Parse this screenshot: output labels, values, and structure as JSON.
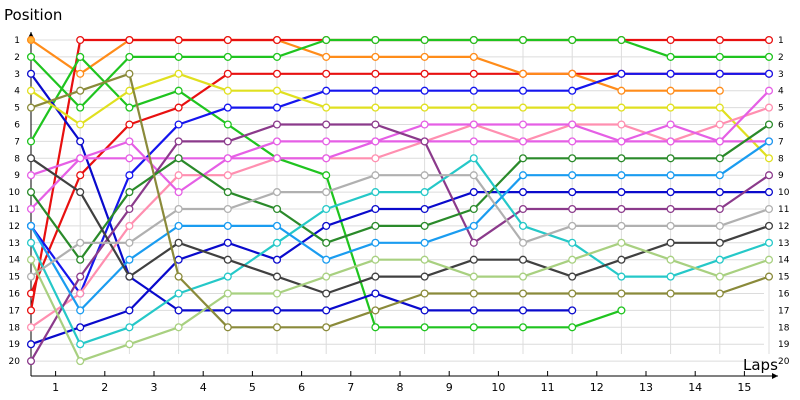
{
  "chart_data": {
    "type": "line",
    "title": "",
    "ylabel": "Position",
    "xlabel": "Laps",
    "y_ticks": [
      "1",
      "2",
      "3",
      "4",
      "5",
      "6",
      "7",
      "8",
      "9",
      "10",
      "11",
      "12",
      "13",
      "14",
      "15",
      "16",
      "17",
      "18",
      "19",
      "20"
    ],
    "x_ticks": [
      "1",
      "2",
      "3",
      "4",
      "5",
      "6",
      "7",
      "8",
      "9",
      "10",
      "11",
      "12",
      "13",
      "14",
      "15"
    ],
    "ylim": [
      1,
      20
    ],
    "y_inverted": true,
    "xlim": [
      0,
      15.5
    ],
    "grid": true,
    "legend": "none",
    "x": [
      0,
      1,
      2,
      3,
      4,
      5,
      6,
      7,
      8,
      9,
      10,
      11,
      12,
      13,
      14,
      15
    ],
    "series": [
      {
        "color": "#e81010",
        "values": [
          16,
          9,
          6,
          5,
          3,
          3,
          3,
          3,
          3,
          3,
          3,
          3,
          3,
          3,
          3,
          3
        ]
      },
      {
        "color": "#ff8c1a",
        "values": [
          1,
          3,
          1,
          1,
          1,
          1,
          2,
          2,
          2,
          2,
          3,
          3,
          4,
          4,
          4,
          null
        ]
      },
      {
        "color": "#e81010",
        "values": [
          17,
          1,
          1,
          1,
          1,
          1,
          1,
          1,
          1,
          1,
          1,
          1,
          1,
          1,
          1,
          1
        ]
      },
      {
        "color": "#1fc41f",
        "values": [
          7,
          2,
          5,
          4,
          6,
          8,
          9,
          18,
          18,
          18,
          18,
          18,
          17,
          null,
          null,
          null
        ]
      },
      {
        "color": "#1fc41f",
        "values": [
          2,
          5,
          2,
          2,
          2,
          2,
          1,
          1,
          1,
          1,
          1,
          1,
          1,
          2,
          2,
          2
        ]
      },
      {
        "color": "#0a0acc",
        "values": [
          3,
          7,
          15,
          17,
          17,
          17,
          17,
          16,
          17,
          17,
          17,
          17,
          null,
          null,
          null,
          null
        ]
      },
      {
        "color": "#0a0acc",
        "values": [
          19,
          18,
          17,
          14,
          13,
          14,
          12,
          11,
          11,
          10,
          10,
          10,
          10,
          10,
          10,
          10
        ]
      },
      {
        "color": "#1515ee",
        "values": [
          12,
          16,
          9,
          6,
          5,
          5,
          4,
          4,
          4,
          4,
          4,
          4,
          3,
          3,
          3,
          3
        ]
      },
      {
        "color": "#e0e020",
        "values": [
          4,
          6,
          4,
          3,
          4,
          4,
          5,
          5,
          5,
          5,
          5,
          5,
          5,
          5,
          5,
          8
        ]
      },
      {
        "color": "#ff8fb0",
        "values": [
          18,
          16,
          12,
          9,
          9,
          8,
          8,
          8,
          7,
          6,
          7,
          6,
          6,
          7,
          6,
          5
        ]
      },
      {
        "color": "#e55fe5",
        "values": [
          9,
          8,
          7,
          10,
          8,
          7,
          7,
          7,
          6,
          6,
          6,
          6,
          7,
          6,
          7,
          4
        ]
      },
      {
        "color": "#e55fe5",
        "values": [
          11,
          8,
          8,
          8,
          8,
          8,
          8,
          7,
          7,
          7,
          7,
          7,
          7,
          7,
          7,
          7
        ]
      },
      {
        "color": "#8b3a8b",
        "values": [
          20,
          15,
          11,
          7,
          7,
          6,
          6,
          6,
          7,
          13,
          11,
          11,
          11,
          11,
          11,
          9
        ]
      },
      {
        "color": "#2a8a2a",
        "values": [
          10,
          14,
          10,
          8,
          10,
          11,
          13,
          12,
          12,
          11,
          8,
          8,
          8,
          8,
          8,
          6
        ]
      },
      {
        "color": "#25c8c8",
        "values": [
          13,
          19,
          18,
          16,
          15,
          13,
          11,
          10,
          10,
          8,
          12,
          13,
          15,
          15,
          14,
          13
        ]
      },
      {
        "color": "#1a9cf0",
        "values": [
          12,
          17,
          14,
          12,
          12,
          12,
          14,
          13,
          13,
          12,
          9,
          9,
          9,
          9,
          9,
          7
        ]
      },
      {
        "color": "#404040",
        "values": [
          8,
          10,
          15,
          13,
          14,
          15,
          16,
          15,
          15,
          14,
          14,
          15,
          14,
          13,
          13,
          12
        ]
      },
      {
        "color": "#b0b0b0",
        "values": [
          15,
          13,
          13,
          11,
          11,
          10,
          10,
          9,
          9,
          9,
          13,
          12,
          12,
          12,
          12,
          11
        ]
      },
      {
        "color": "#a8d080",
        "values": [
          14,
          20,
          19,
          18,
          16,
          16,
          15,
          14,
          14,
          15,
          15,
          14,
          13,
          14,
          15,
          14
        ]
      },
      {
        "color": "#8a8a3a",
        "values": [
          5,
          4,
          3,
          15,
          18,
          18,
          18,
          17,
          16,
          16,
          16,
          16,
          16,
          16,
          16,
          15
        ]
      }
    ]
  }
}
